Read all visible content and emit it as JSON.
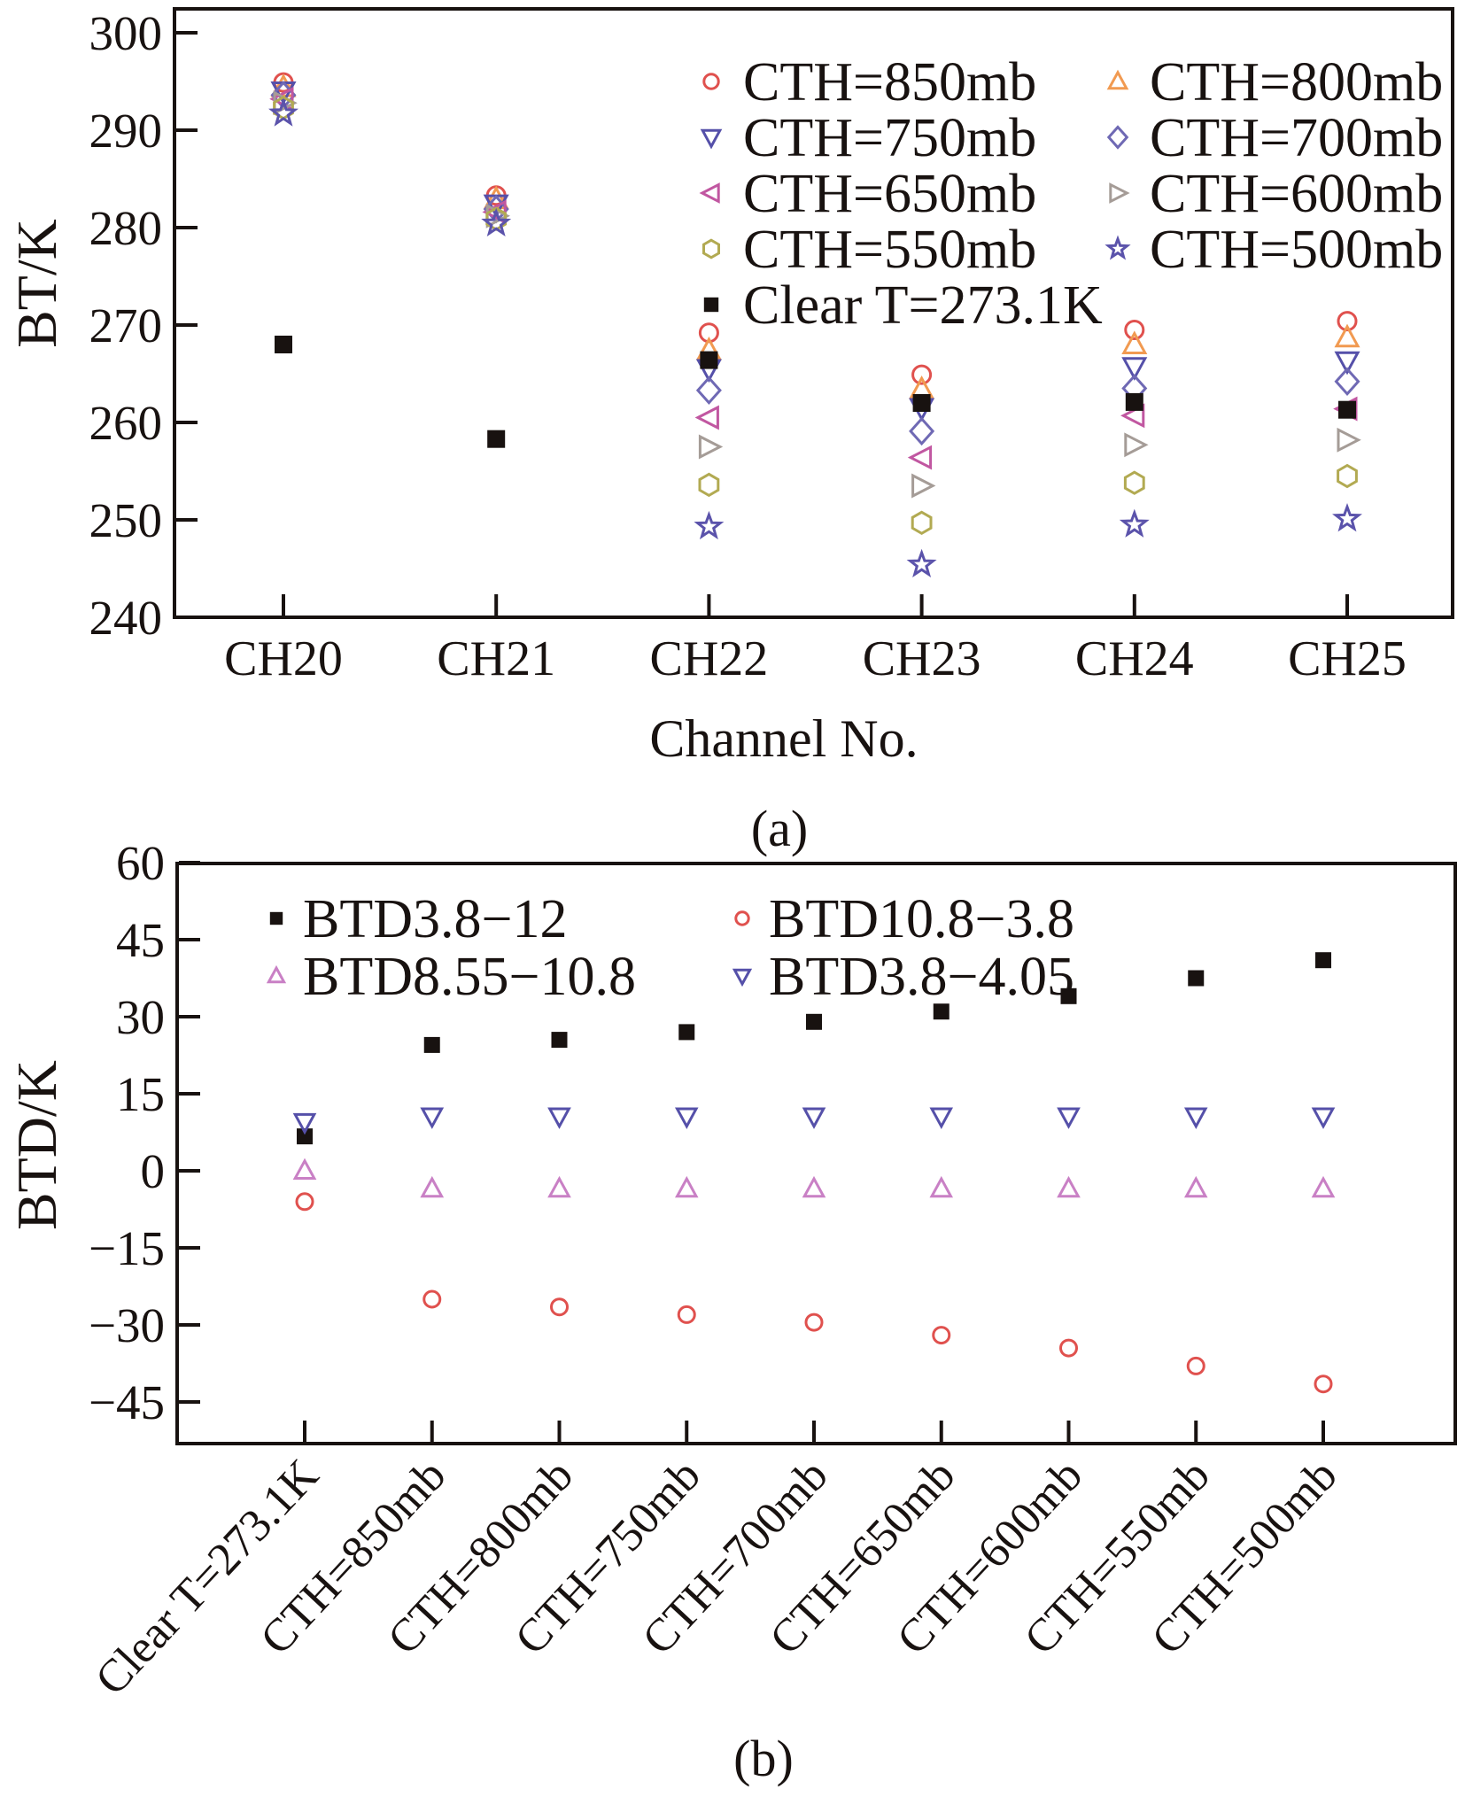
{
  "figure": {
    "panel_a_label": "(a)",
    "panel_b_label": "(b)",
    "background": "#ffffff",
    "frame_color": "#181210"
  },
  "chart_data": [
    {
      "type": "scatter",
      "panel": "a",
      "title": "",
      "xlabel": "Channel No.",
      "ylabel": "BT/K",
      "ylim": [
        240,
        302.5
      ],
      "yticks": [
        240,
        250,
        260,
        270,
        280,
        290,
        300
      ],
      "grid": false,
      "legend_position": "top-right-inside-two-columns",
      "categories": [
        "CH20",
        "CH21",
        "CH22",
        "CH23",
        "CH24",
        "CH25"
      ],
      "series": [
        {
          "name": "CTH=850mb",
          "marker": "circle",
          "color": "#e0514e",
          "values": [
            294.9,
            283.3,
            269.2,
            264.9,
            269.5,
            270.4
          ]
        },
        {
          "name": "CTH=800mb",
          "marker": "triangle-up",
          "color": "#f19a51",
          "values": [
            294.4,
            282.9,
            267.4,
            263.4,
            268.0,
            268.7
          ]
        },
        {
          "name": "CTH=750mb",
          "marker": "triangle-down",
          "color": "#5550a9",
          "values": [
            294.0,
            282.4,
            265.5,
            261.5,
            265.7,
            266.3
          ]
        },
        {
          "name": "CTH=700mb",
          "marker": "diamond",
          "color": "#6f69b4",
          "values": [
            293.6,
            281.9,
            263.3,
            259.1,
            263.5,
            264.2
          ]
        },
        {
          "name": "CTH=650mb",
          "marker": "triangle-left",
          "color": "#c157a1",
          "values": [
            293.2,
            281.6,
            260.5,
            256.4,
            260.7,
            261.4
          ]
        },
        {
          "name": "CTH=600mb",
          "marker": "triangle-right",
          "color": "#a59c97",
          "values": [
            292.8,
            281.2,
            257.5,
            253.5,
            257.7,
            258.2
          ]
        },
        {
          "name": "CTH=550mb",
          "marker": "hexagon",
          "color": "#b2aa52",
          "values": [
            292.3,
            280.9,
            253.6,
            249.7,
            253.8,
            254.5
          ]
        },
        {
          "name": "CTH=500mb",
          "marker": "star",
          "color": "#5b53ab",
          "values": [
            291.7,
            280.4,
            249.3,
            245.4,
            249.5,
            250.1
          ]
        },
        {
          "name": "Clear T=273.1K",
          "marker": "square-filled",
          "color": "#181210",
          "values": [
            268.0,
            258.3,
            266.4,
            262.0,
            262.1,
            261.3
          ]
        }
      ]
    },
    {
      "type": "scatter",
      "panel": "b",
      "title": "",
      "xlabel": "",
      "ylabel": "BTD/K",
      "ylim": [
        -53,
        60
      ],
      "yticks": [
        -45,
        -30,
        -15,
        0,
        15,
        30,
        45,
        60
      ],
      "grid": false,
      "legend_position": "top-left-inside-two-columns",
      "categories": [
        "Clear T=273.1K",
        "CTH=850mb",
        "CTH=800mb",
        "CTH=750mb",
        "CTH=700mb",
        "CTH=650mb",
        "CTH=600mb",
        "CTH=550mb",
        "CTH=500mb"
      ],
      "series": [
        {
          "name": "BTD3.8-12",
          "marker": "square-filled",
          "color": "#181210",
          "values": [
            6.7,
            24.5,
            25.5,
            27.0,
            29.0,
            31.0,
            34.0,
            37.5,
            41.0
          ]
        },
        {
          "name": "BTD10.8-3.8",
          "marker": "circle",
          "color": "#e0514e",
          "values": [
            -6.0,
            -25.0,
            -26.5,
            -28.0,
            -29.5,
            -32.0,
            -34.5,
            -38.0,
            -41.5
          ]
        },
        {
          "name": "BTD8.55-10.8",
          "marker": "triangle-up",
          "color": "#c980c5",
          "values": [
            0.0,
            -3.5,
            -3.5,
            -3.5,
            -3.5,
            -3.5,
            -3.5,
            -3.5,
            -3.5
          ]
        },
        {
          "name": "BTD3.8-4.05",
          "marker": "triangle-down",
          "color": "#5550a9",
          "values": [
            9.5,
            10.6,
            10.6,
            10.6,
            10.6,
            10.6,
            10.6,
            10.6,
            10.6
          ]
        }
      ]
    }
  ]
}
